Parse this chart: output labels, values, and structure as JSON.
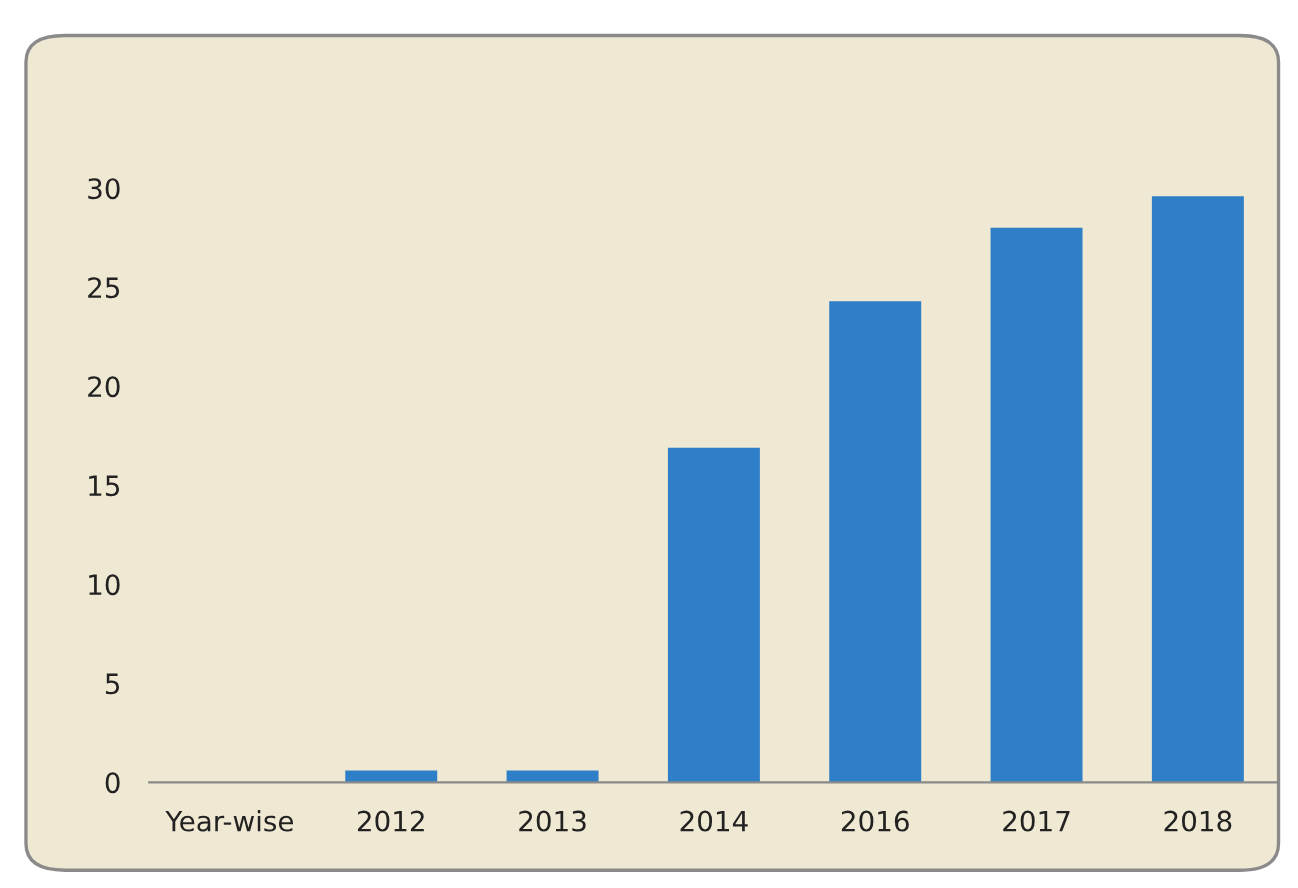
{
  "chart_data": {
    "type": "bar",
    "categories": [
      "Year-wise",
      "2012",
      "2013",
      "2014",
      "2016",
      "2017",
      "2018"
    ],
    "values": [
      0,
      0.6,
      0.6,
      16.9,
      24.3,
      28.0,
      29.6
    ],
    "color": "#2f7fc8",
    "ylim": [
      0,
      30
    ],
    "yticks": [
      0,
      5,
      10,
      15,
      20,
      25,
      30
    ]
  }
}
